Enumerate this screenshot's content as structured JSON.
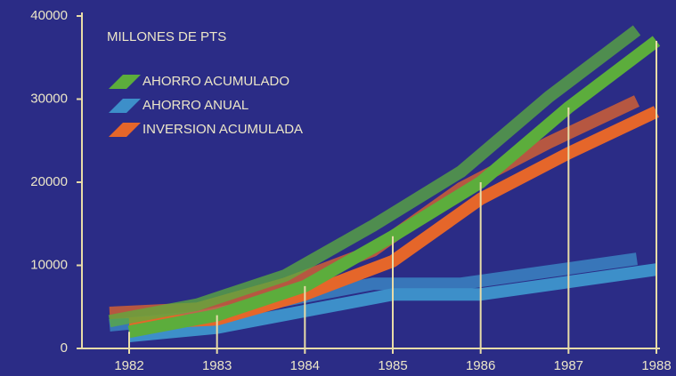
{
  "chart_data": {
    "type": "line",
    "title": "MILLONES DE PTS",
    "categories": [
      "1982",
      "1983",
      "1984",
      "1985",
      "1986",
      "1987",
      "1988"
    ],
    "series": [
      {
        "name": "AHORRO ACUMULADO",
        "color": "#5cad3c",
        "values": [
          2000,
          4000,
          7500,
          13500,
          20000,
          29000,
          37000
        ]
      },
      {
        "name": "AHORRO ANUAL",
        "color": "#3d8fc9",
        "values": [
          1500,
          2500,
          4500,
          6500,
          6500,
          8000,
          9500
        ]
      },
      {
        "name": "INVERSION ACUMULADA",
        "color": "#e5662a",
        "values": [
          3000,
          3500,
          6500,
          10500,
          18000,
          23500,
          28500
        ]
      }
    ],
    "ylim": [
      0,
      40000
    ],
    "yticks": [
      0,
      10000,
      20000,
      30000,
      40000
    ]
  }
}
